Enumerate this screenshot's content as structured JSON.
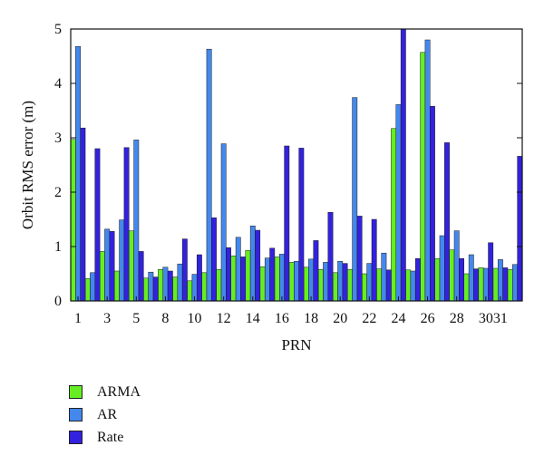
{
  "chart_data": {
    "type": "bar",
    "title": "",
    "xlabel": "PRN",
    "ylabel": "Orbit RMS error (m)",
    "ylim": [
      0,
      5
    ],
    "yticks": [
      "0",
      "1",
      "2",
      "3",
      "4",
      "5"
    ],
    "grid": false,
    "legend_position": "bottom-left",
    "tick_label_categories": [
      "1",
      "3",
      "5",
      "8",
      "10",
      "12",
      "14",
      "16",
      "18",
      "20",
      "22",
      "24",
      "26",
      "28",
      "30",
      "31"
    ],
    "categories": [
      "1",
      "2",
      "3",
      "4",
      "5",
      "6",
      "8",
      "9",
      "10",
      "11",
      "12",
      "13",
      "14",
      "15",
      "16",
      "17",
      "18",
      "19",
      "20",
      "21",
      "22",
      "23",
      "24",
      "25",
      "26",
      "27",
      "28",
      "29",
      "30",
      "31",
      "32"
    ],
    "series": [
      {
        "name": "ARMA",
        "color": "#66ee22",
        "values": [
          2.97,
          0.41,
          0.91,
          0.55,
          1.29,
          0.42,
          0.58,
          0.44,
          0.37,
          0.52,
          0.58,
          0.83,
          0.93,
          0.63,
          0.81,
          0.71,
          0.62,
          0.58,
          0.52,
          0.58,
          0.5,
          0.59,
          3.17,
          0.57,
          4.57,
          0.78,
          0.94,
          0.5,
          0.61,
          0.6,
          0.58
        ]
      },
      {
        "name": "AR",
        "color": "#4488ee",
        "values": [
          4.68,
          0.52,
          1.32,
          1.49,
          2.96,
          0.53,
          0.62,
          0.68,
          0.49,
          4.63,
          2.89,
          1.17,
          1.38,
          0.79,
          0.86,
          0.73,
          0.77,
          0.71,
          0.73,
          3.74,
          0.69,
          0.88,
          3.61,
          0.55,
          4.8,
          1.2,
          1.29,
          0.85,
          0.6,
          0.76,
          0.67
        ]
      },
      {
        "name": "Rate",
        "color": "#3322dd",
        "values": [
          3.18,
          2.8,
          1.28,
          2.82,
          0.91,
          0.44,
          0.55,
          1.14,
          0.85,
          1.53,
          0.98,
          0.81,
          1.3,
          0.97,
          2.85,
          2.81,
          1.11,
          1.63,
          0.69,
          1.56,
          1.5,
          0.57,
          5.0,
          0.78,
          3.58,
          2.91,
          0.78,
          0.59,
          1.07,
          0.61,
          2.66
        ]
      }
    ]
  }
}
